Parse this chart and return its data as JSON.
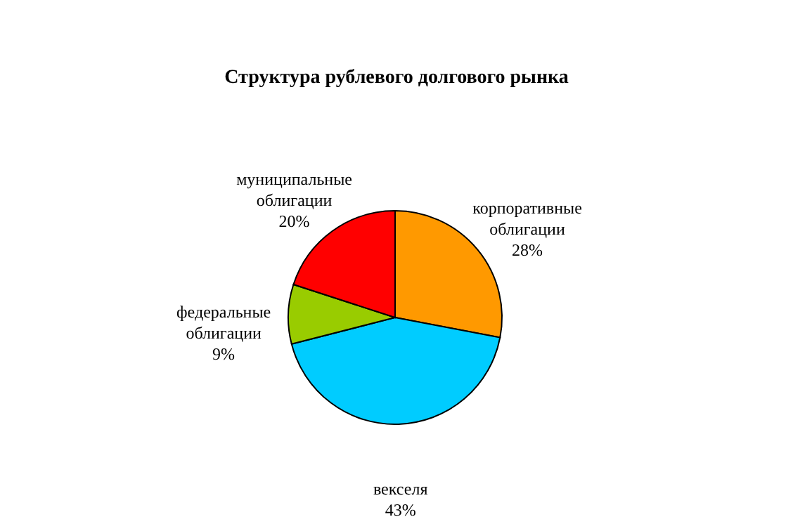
{
  "chart_data": {
    "type": "pie",
    "title": "Структура рублевого долгового рынка",
    "categories": [
      "корпоративные облигации",
      "векселя",
      "федеральные облигации",
      "муниципальные облигации"
    ],
    "values": [
      28,
      43,
      9,
      20
    ],
    "value_labels": [
      "28%",
      "43%",
      "9%",
      "20%"
    ],
    "colors": [
      "#ff9900",
      "#00ccff",
      "#99cc00",
      "#ff0000"
    ]
  }
}
